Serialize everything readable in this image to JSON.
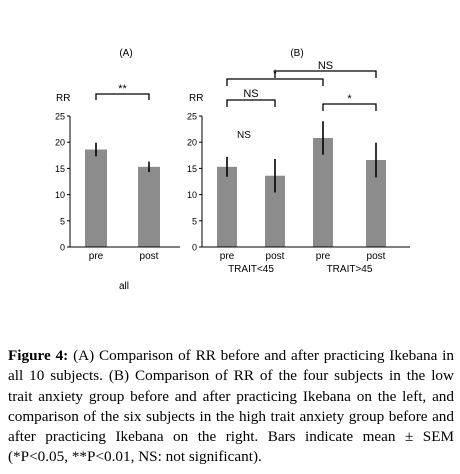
{
  "chart_data": [
    {
      "type": "bar",
      "panel_label": "(A)",
      "ylabel": "RR",
      "ylim": [
        0,
        25
      ],
      "yticks": [
        "0",
        "5",
        "10",
        "15",
        "20",
        "25"
      ],
      "categories": [
        "pre",
        "post"
      ],
      "values": [
        18.6,
        15.3
      ],
      "errors": [
        1.3,
        1.0
      ],
      "group_label": "all",
      "bar_color": "#8c8c8c",
      "significance": [
        {
          "from": 0,
          "to": 1,
          "label": "**"
        }
      ]
    },
    {
      "type": "bar",
      "panel_label": "(B)",
      "ylabel": "RR",
      "ylim": [
        0,
        25
      ],
      "yticks": [
        "0",
        "5",
        "10",
        "15",
        "20",
        "25"
      ],
      "categories": [
        "pre",
        "post",
        "pre",
        "post"
      ],
      "values": [
        15.3,
        13.6,
        20.8,
        16.6
      ],
      "errors": [
        1.9,
        3.2,
        3.2,
        3.3
      ],
      "groups": [
        {
          "label": "TRAIT<45",
          "from": 0,
          "to": 1
        },
        {
          "label": "TRAIT>45",
          "from": 2,
          "to": 3
        }
      ],
      "bar_color": "#8c8c8c",
      "significance": [
        {
          "from": 0,
          "to": 1,
          "label": "NS"
        },
        {
          "from": 2,
          "to": 3,
          "label": "*"
        },
        {
          "from": 0,
          "to": 2,
          "label": "*"
        },
        {
          "from": 1,
          "to": 3,
          "label": "NS"
        }
      ],
      "annotation": "NS"
    }
  ],
  "caption": {
    "label": "Figure 4:",
    "text": " (A) Comparison of RR before and after practicing Ikebana in all 10 subjects. (B) Comparison of RR of the four subjects in the low trait anxiety group before and after practicing Ikebana on the left, and comparison of the six subjects in the high trait anxiety group before and after practicing Ikebana on the right. Bars indicate mean ± SEM (*P<0.05, **P<0.01, NS: not significant)."
  }
}
